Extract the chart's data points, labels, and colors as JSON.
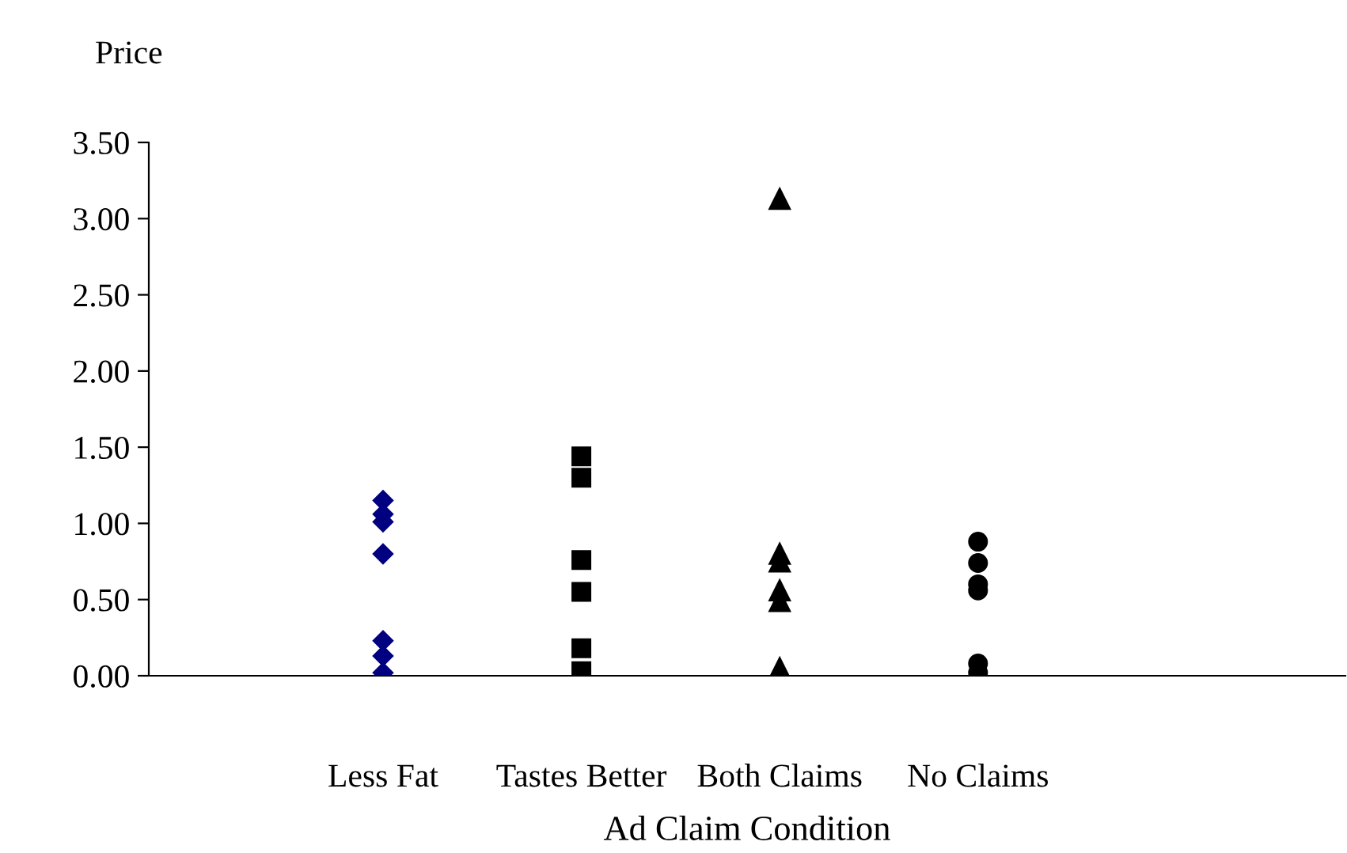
{
  "chart_data": {
    "type": "scatter",
    "ylabel": "Price",
    "xlabel": "Ad Claim Condition",
    "categories": [
      "Less Fat",
      "Tastes Better",
      "Both Claims",
      "No Claims"
    ],
    "ylim": [
      0,
      3.5
    ],
    "yticks": [
      {
        "value": 0,
        "label": "0.00"
      },
      {
        "value": 0.5,
        "label": "0.50"
      },
      {
        "value": 1,
        "label": "1.00"
      },
      {
        "value": 1.5,
        "label": "1.50"
      },
      {
        "value": 2,
        "label": "2.00"
      },
      {
        "value": 2.5,
        "label": "2.50"
      },
      {
        "value": 3,
        "label": "3.00"
      },
      {
        "value": 3.5,
        "label": "3.50"
      }
    ],
    "grid": false,
    "legend": false,
    "series": [
      {
        "color": "#000080",
        "marker": "diamond",
        "x": [
          "Less Fat",
          "Less Fat",
          "Less Fat",
          "Less Fat",
          "Less Fat",
          "Less Fat",
          "Less Fat"
        ],
        "values": [
          1.15,
          1.06,
          1.01,
          0.8,
          0.23,
          0.13,
          0.02
        ]
      },
      {
        "color": "#000000",
        "marker": "square",
        "x": [
          "Tastes Better",
          "Tastes Better",
          "Tastes Better",
          "Tastes Better",
          "Tastes Better",
          "Tastes Better"
        ],
        "values": [
          1.44,
          1.3,
          0.76,
          0.55,
          0.18,
          0.03
        ]
      },
      {
        "color": "#000000",
        "marker": "triangle",
        "x": [
          "Both Claims",
          "Both Claims",
          "Both Claims",
          "Both Claims",
          "Both Claims",
          "Both Claims"
        ],
        "values": [
          3.13,
          0.8,
          0.75,
          0.56,
          0.49,
          0.05
        ]
      },
      {
        "color": "#000000",
        "marker": "circle",
        "x": [
          "No Claims",
          "No Claims",
          "No Claims",
          "No Claims",
          "No Claims",
          "No Claims"
        ],
        "values": [
          0.88,
          0.74,
          0.6,
          0.56,
          0.08,
          0.02
        ]
      }
    ]
  }
}
